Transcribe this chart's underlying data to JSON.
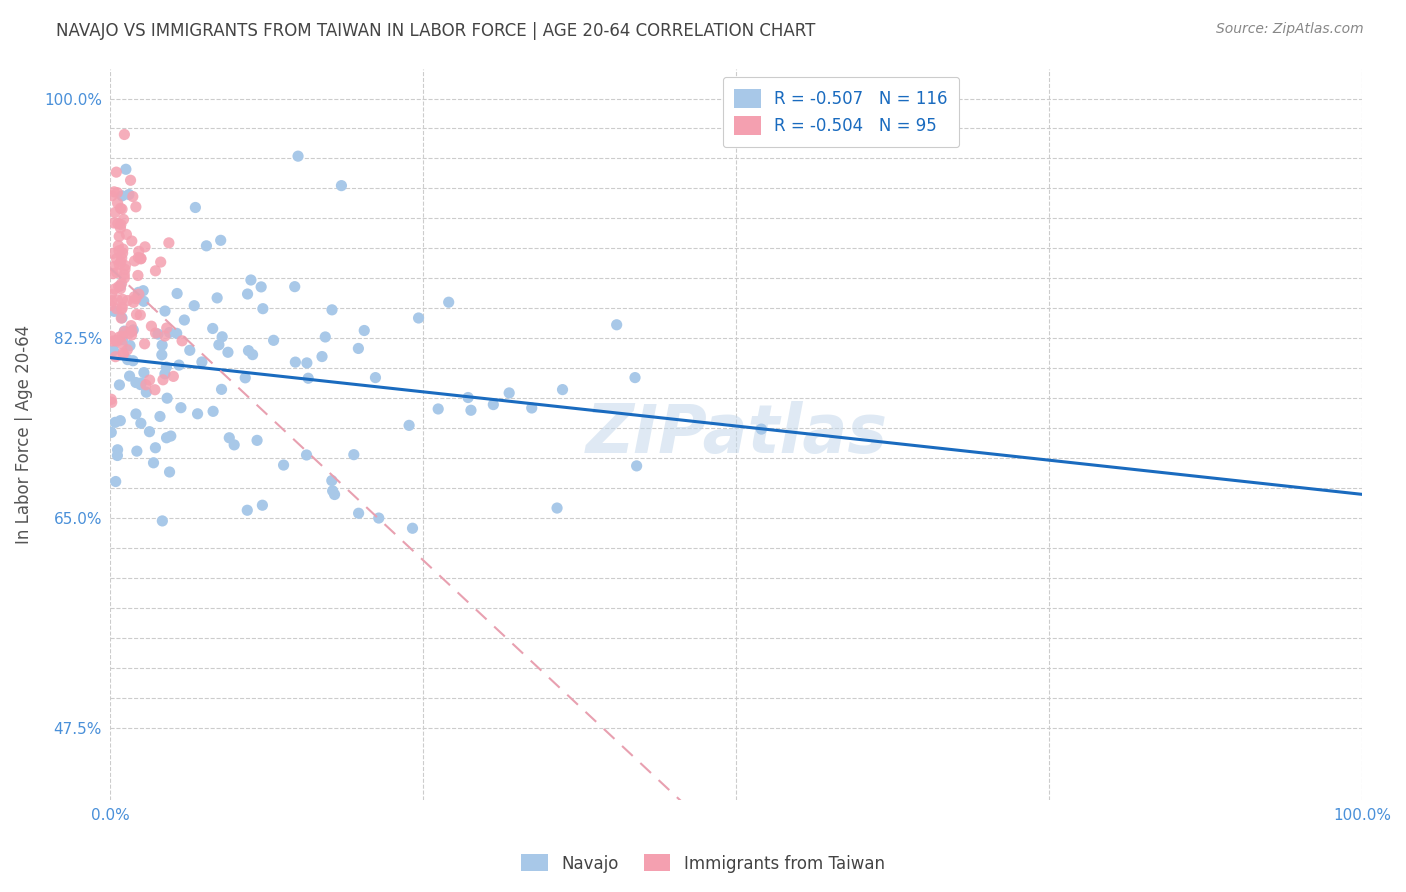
{
  "title": "NAVAJO VS IMMIGRANTS FROM TAIWAN IN LABOR FORCE | AGE 20-64 CORRELATION CHART",
  "source": "Source: ZipAtlas.com",
  "ylabel": "In Labor Force | Age 20-64",
  "xmin": 0.0,
  "xmax": 1.0,
  "ymin": 0.415,
  "ymax": 1.025,
  "navajo_R": -0.507,
  "navajo_N": 116,
  "taiwan_R": -0.504,
  "taiwan_N": 95,
  "navajo_color": "#a8c8e8",
  "taiwan_color": "#f4a0b0",
  "navajo_line_color": "#1a6bbf",
  "taiwan_line_color": "#e8a0b0",
  "legend_label_navajo": "Navajo",
  "legend_label_taiwan": "Immigrants from Taiwan",
  "watermark": "ZIPatlas",
  "background_color": "#ffffff",
  "grid_color": "#cccccc",
  "title_color": "#444444",
  "axis_label_color": "#555555",
  "tick_label_color": "#4a90d9",
  "source_color": "#888888"
}
